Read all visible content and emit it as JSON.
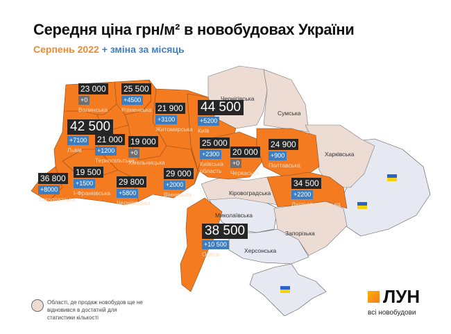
{
  "title": "Середня ціна грн/м² в новобудовах України",
  "subtitle": {
    "period": "Серпень 2022",
    "change": "+ зміна за місяць"
  },
  "colors": {
    "data_region": "#f47b20",
    "no_data_region": "#ecdcd4",
    "occupied_region": "#e6e8f2",
    "value_bg": "#262626",
    "change_bg": "#3c7ec1",
    "zero_change_bg": "#707070"
  },
  "regions": [
    {
      "name": "Волинська",
      "price": "23 000",
      "change": "+0"
    },
    {
      "name": "Рівненська",
      "price": "25 500",
      "change": "+4500"
    },
    {
      "name": "Житомирська",
      "price": "21 900",
      "change": "+3100"
    },
    {
      "name": "Київ",
      "price": "44 500",
      "change": "+5200"
    },
    {
      "name": "Львів",
      "price": "42 500",
      "change": "+7100"
    },
    {
      "name": "Тернопільська",
      "price": "21 000",
      "change": "+1200"
    },
    {
      "name": "Хмельницька",
      "price": "19 000",
      "change": "+0"
    },
    {
      "name": "Київська область",
      "price": "25 000",
      "change": "+2300"
    },
    {
      "name": "Черкаська",
      "price": "20 000",
      "change": "+0"
    },
    {
      "name": "Полтавська",
      "price": "24 900",
      "change": "+900"
    },
    {
      "name": "І-Франківська",
      "price": "19 500",
      "change": "+1500"
    },
    {
      "name": "Закарпатська",
      "price": "36 800",
      "change": "+8000"
    },
    {
      "name": "Чернівецька",
      "price": "29 800",
      "change": "+5800"
    },
    {
      "name": "Вінницька",
      "price": "29 000",
      "change": "+2000"
    },
    {
      "name": "Дніпропетровська",
      "price": "34 500",
      "change": "+2200"
    },
    {
      "name": "Одеса",
      "price": "38 500",
      "change": "+10 500"
    }
  ],
  "no_data_regions": [
    "Чернігівська",
    "Сумська",
    "Харківська",
    "Кіровоградська",
    "Миколаївська",
    "Запорізька",
    "Херсонська"
  ],
  "legend": "Області, де продаж новобудов ще не відновився в достатній для статистики кількості",
  "logo": {
    "name": "ЛУН",
    "tagline": "всі новобудови"
  }
}
